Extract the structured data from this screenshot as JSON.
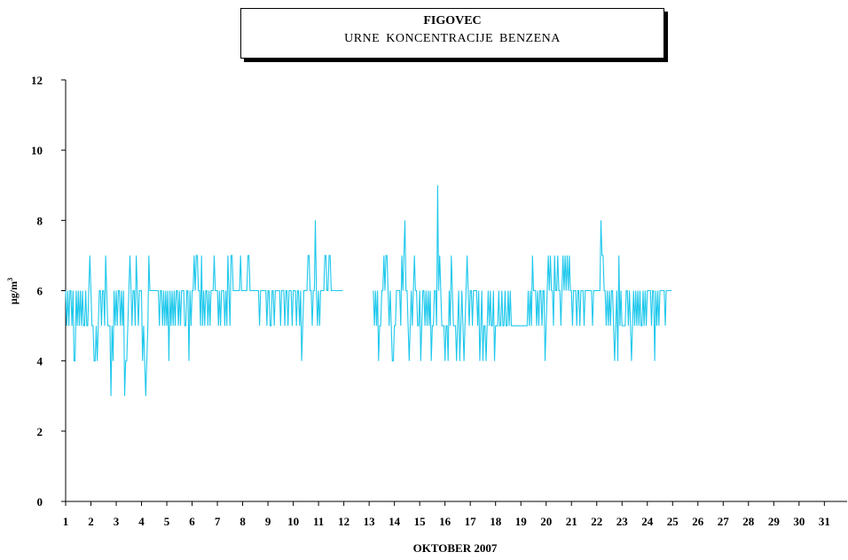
{
  "title": {
    "main": "FIGOVEC",
    "sub": "URNE  KONCENTRACIJE  BENZENA"
  },
  "chart_data": {
    "type": "line",
    "title": "FIGOVEC",
    "subtitle": "URNE  KONCENTRACIJE  BENZENA",
    "xlabel": "OKTOBER  2007",
    "ylabel": "µg/m",
    "ylabel_superscript": "3",
    "xlim": [
      1,
      31.9
    ],
    "ylim": [
      0,
      12
    ],
    "yticks": [
      "0",
      "2",
      "4",
      "6",
      "8",
      "10",
      "12"
    ],
    "xticks": [
      "1",
      "2",
      "3",
      "4",
      "5",
      "6",
      "7",
      "8",
      "9",
      "10",
      "11",
      "12",
      "13",
      "14",
      "15",
      "16",
      "17",
      "18",
      "19",
      "20",
      "21",
      "22",
      "23",
      "24",
      "25",
      "26",
      "27",
      "28",
      "29",
      "30",
      "31"
    ],
    "grid": false,
    "legend": "none",
    "colors": {
      "series": "#1ec8ec",
      "axis": "#000000"
    },
    "series": [
      {
        "name": "",
        "x_start_day": 1,
        "step_hours": 1,
        "note_gap": "null values indicate missing data",
        "values": [
          6,
          5,
          6,
          5,
          6,
          6,
          5,
          6,
          4,
          4,
          6,
          5,
          6,
          5,
          6,
          5,
          6,
          5,
          5,
          6,
          5,
          5,
          6,
          7,
          6,
          5,
          5,
          4,
          4,
          5,
          4,
          5,
          6,
          6,
          5,
          6,
          6,
          5,
          7,
          6,
          5,
          5,
          5,
          3,
          5,
          4,
          6,
          5,
          6,
          5,
          6,
          6,
          5,
          6,
          5,
          6,
          3,
          4,
          4,
          5,
          6,
          7,
          6,
          5,
          6,
          6,
          5,
          7,
          6,
          5,
          6,
          6,
          6,
          4,
          5,
          4,
          3,
          4,
          5,
          7,
          6,
          6,
          6,
          6,
          6,
          6,
          6,
          6,
          6,
          5,
          6,
          6,
          5,
          6,
          5,
          6,
          5,
          6,
          4,
          6,
          5,
          6,
          5,
          6,
          5,
          6,
          6,
          5,
          6,
          5,
          6,
          6,
          6,
          5,
          5,
          6,
          6,
          4,
          6,
          5,
          6,
          6,
          7,
          6,
          7,
          7,
          6,
          6,
          5,
          7,
          5,
          6,
          5,
          6,
          6,
          5,
          6,
          5,
          6,
          6,
          6,
          7,
          6,
          6,
          6,
          5,
          6,
          5,
          6,
          6,
          6,
          5,
          6,
          5,
          7,
          6,
          5,
          7,
          7,
          6,
          6,
          6,
          6,
          6,
          6,
          6,
          7,
          6,
          6,
          6,
          6,
          6,
          6,
          7,
          7,
          6,
          6,
          6,
          6,
          6,
          6,
          6,
          6,
          6,
          5,
          6,
          6,
          6,
          6,
          6,
          6,
          5,
          6,
          6,
          5,
          5,
          6,
          6,
          5,
          6,
          6,
          6,
          6,
          6,
          5,
          6,
          6,
          6,
          5,
          6,
          6,
          5,
          6,
          6,
          6,
          5,
          6,
          6,
          6,
          5,
          6,
          6,
          5,
          6,
          4,
          5,
          6,
          6,
          6,
          6,
          7,
          7,
          6,
          6,
          5,
          6,
          6,
          8,
          6,
          5,
          6,
          5,
          6,
          6,
          6,
          6,
          7,
          7,
          6,
          6,
          7,
          7,
          6,
          6,
          6,
          6,
          6,
          6,
          6,
          6,
          6,
          6,
          6,
          6,
          null,
          null,
          null,
          null,
          null,
          null,
          null,
          null,
          null,
          null,
          null,
          null,
          null,
          null,
          null,
          null,
          null,
          null,
          null,
          null,
          null,
          null,
          null,
          null,
          null,
          null,
          null,
          null,
          6,
          5,
          6,
          5,
          6,
          4,
          5,
          5,
          6,
          6,
          7,
          6,
          7,
          7,
          6,
          5,
          6,
          5,
          4,
          4,
          5,
          5,
          6,
          6,
          6,
          6,
          5,
          7,
          6,
          7,
          8,
          6,
          6,
          5,
          4,
          5,
          6,
          5,
          6,
          7,
          6,
          6,
          5,
          5,
          6,
          4,
          5,
          6,
          6,
          5,
          6,
          5,
          6,
          5,
          6,
          4,
          5,
          5,
          6,
          6,
          5,
          9,
          6,
          7,
          6,
          5,
          5,
          5,
          4,
          5,
          5,
          4,
          6,
          5,
          7,
          6,
          5,
          5,
          5,
          4,
          5,
          6,
          4,
          5,
          6,
          5,
          4,
          5,
          6,
          7,
          6,
          5,
          6,
          6,
          5,
          6,
          6,
          6,
          6,
          5,
          6,
          4,
          5,
          6,
          4,
          5,
          5,
          4,
          5,
          6,
          5,
          6,
          5,
          5,
          6,
          4,
          5,
          5,
          5,
          6,
          5,
          5,
          6,
          5,
          5,
          6,
          5,
          5,
          6,
          5,
          6,
          5,
          5,
          5,
          5,
          5,
          5,
          5,
          5,
          5,
          5,
          5,
          5,
          5,
          5,
          5,
          5,
          6,
          5,
          6,
          5,
          7,
          6,
          6,
          6,
          5,
          6,
          5,
          6,
          6,
          5,
          6,
          6,
          4,
          5,
          6,
          7,
          6,
          7,
          6,
          6,
          5,
          7,
          6,
          6,
          7,
          6,
          6,
          5,
          6,
          7,
          6,
          7,
          6,
          7,
          6,
          7,
          6,
          6,
          5,
          6,
          6,
          6,
          5,
          6,
          6,
          5,
          6,
          6,
          6,
          5,
          6,
          6,
          6,
          6,
          6,
          6,
          6,
          5,
          6,
          6,
          6,
          6,
          6,
          6,
          6,
          8,
          7,
          7,
          6,
          6,
          5,
          6,
          5,
          6,
          5,
          6,
          6,
          5,
          4,
          5,
          6,
          4,
          7,
          5,
          6,
          5,
          5,
          5,
          5,
          6,
          6,
          5,
          6,
          5,
          4,
          5,
          6,
          5,
          6,
          5,
          6,
          5,
          6,
          5,
          5,
          6,
          5,
          6,
          5,
          6,
          6,
          6,
          6,
          5,
          6,
          6,
          4,
          6,
          5,
          6,
          5,
          6,
          6,
          6,
          6,
          6,
          5,
          6,
          6,
          6,
          6,
          6,
          6
        ]
      }
    ]
  }
}
